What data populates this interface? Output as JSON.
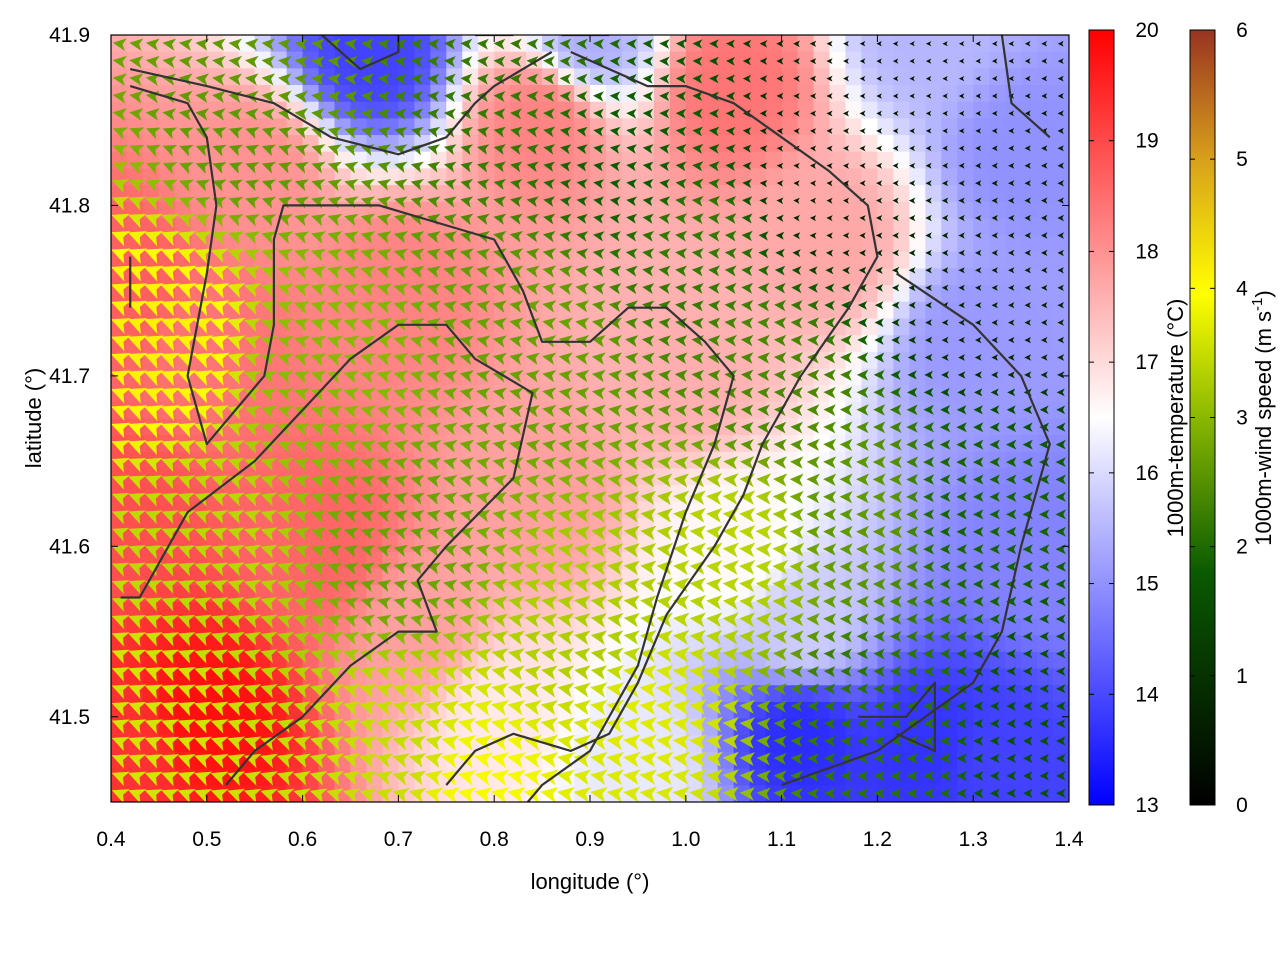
{
  "chart_data": {
    "type": "heatmap",
    "xlabel": "longitude (°)",
    "ylabel": "latitude (°)",
    "xlim": [
      0.4,
      1.4
    ],
    "ylim": [
      41.45,
      41.9
    ],
    "xticks": [
      "0.4",
      "0.5",
      "0.6",
      "0.7",
      "0.8",
      "0.9",
      "1.0",
      "1.1",
      "1.2",
      "1.3",
      "1.4"
    ],
    "yticks": [
      "41.5",
      "41.6",
      "41.7",
      "41.8",
      "41.9"
    ],
    "temperature_colorbar": {
      "label": "1000m-temperature (°C)",
      "range": [
        13,
        20
      ],
      "ticks": [
        "13",
        "14",
        "15",
        "16",
        "17",
        "18",
        "19",
        "20"
      ],
      "colors": [
        "#0000ff",
        "#ffffff",
        "#ff0000"
      ]
    },
    "wind_speed_colorbar": {
      "label_main": "1000m-wind speed (m s",
      "label_exponent": "-1",
      "label_close": ")",
      "range": [
        0,
        6
      ],
      "ticks": [
        "0",
        "1",
        "2",
        "3",
        "4",
        "5",
        "6"
      ],
      "colors": [
        "#000000",
        "#0a5a00",
        "#8ab800",
        "#ffff00",
        "#d9a21a",
        "#993322"
      ]
    },
    "temperature_anchors": [
      {
        "lon": 0.42,
        "lat": 41.48,
        "t": 19.3
      },
      {
        "lon": 0.5,
        "lat": 41.5,
        "t": 19.8
      },
      {
        "lon": 0.42,
        "lat": 41.75,
        "t": 18.7
      },
      {
        "lon": 0.5,
        "lat": 41.72,
        "t": 18.4
      },
      {
        "lon": 0.4,
        "lat": 41.62,
        "t": 18.9
      },
      {
        "lon": 0.62,
        "lat": 41.6,
        "t": 18.6
      },
      {
        "lon": 0.7,
        "lat": 41.75,
        "t": 18.2
      },
      {
        "lon": 0.85,
        "lat": 41.85,
        "t": 18.2
      },
      {
        "lon": 1.05,
        "lat": 41.87,
        "t": 18.4
      },
      {
        "lon": 1.15,
        "lat": 41.78,
        "t": 17.7
      },
      {
        "lon": 0.67,
        "lat": 41.89,
        "t": 13.9
      },
      {
        "lon": 0.9,
        "lat": 41.9,
        "t": 15.4
      },
      {
        "lon": 1.25,
        "lat": 41.9,
        "t": 15.5
      },
      {
        "lon": 1.35,
        "lat": 41.83,
        "t": 15.0
      },
      {
        "lon": 1.3,
        "lat": 41.72,
        "t": 15.1
      },
      {
        "lon": 1.37,
        "lat": 41.6,
        "t": 14.8
      },
      {
        "lon": 1.12,
        "lat": 41.55,
        "t": 15.8
      },
      {
        "lon": 1.12,
        "lat": 41.49,
        "t": 13.6
      },
      {
        "lon": 1.25,
        "lat": 41.48,
        "t": 13.7
      },
      {
        "lon": 1.32,
        "lat": 41.47,
        "t": 13.9
      },
      {
        "lon": 0.95,
        "lat": 41.47,
        "t": 16.2
      },
      {
        "lon": 0.8,
        "lat": 41.5,
        "t": 16.8
      },
      {
        "lon": 0.72,
        "lat": 41.55,
        "t": 17.8
      },
      {
        "lon": 0.85,
        "lat": 41.63,
        "t": 17.8
      },
      {
        "lon": 1.0,
        "lat": 41.7,
        "t": 17.6
      },
      {
        "lon": 1.05,
        "lat": 41.6,
        "t": 16.6
      },
      {
        "lon": 0.55,
        "lat": 41.82,
        "t": 18.0
      }
    ],
    "wind_speed_anchors": [
      {
        "lon": 0.45,
        "lat": 41.72,
        "s": 4.1
      },
      {
        "lon": 0.42,
        "lat": 41.5,
        "s": 3.6
      },
      {
        "lon": 0.5,
        "lat": 41.6,
        "s": 3.4
      },
      {
        "lon": 0.55,
        "lat": 41.85,
        "s": 2.6
      },
      {
        "lon": 0.62,
        "lat": 41.7,
        "s": 3.0
      },
      {
        "lon": 0.7,
        "lat": 41.6,
        "s": 2.7
      },
      {
        "lon": 0.7,
        "lat": 41.48,
        "s": 3.5
      },
      {
        "lon": 0.78,
        "lat": 41.46,
        "s": 3.9
      },
      {
        "lon": 0.85,
        "lat": 41.72,
        "s": 2.7
      },
      {
        "lon": 0.9,
        "lat": 41.55,
        "s": 3.3
      },
      {
        "lon": 0.95,
        "lat": 41.5,
        "s": 3.7
      },
      {
        "lon": 1.05,
        "lat": 41.6,
        "s": 3.4
      },
      {
        "lon": 1.0,
        "lat": 41.78,
        "s": 2.2
      },
      {
        "lon": 1.08,
        "lat": 41.7,
        "s": 2.4
      },
      {
        "lon": 1.18,
        "lat": 41.62,
        "s": 2.6
      },
      {
        "lon": 1.3,
        "lat": 41.62,
        "s": 1.9
      },
      {
        "lon": 1.15,
        "lat": 41.82,
        "s": 0.6
      },
      {
        "lon": 1.25,
        "lat": 41.88,
        "s": 0.4
      },
      {
        "lon": 1.32,
        "lat": 41.75,
        "s": 0.7
      },
      {
        "lon": 1.2,
        "lat": 41.5,
        "s": 2.1
      },
      {
        "lon": 0.8,
        "lat": 41.88,
        "s": 2.2
      },
      {
        "lon": 0.95,
        "lat": 41.82,
        "s": 1.8
      },
      {
        "lon": 1.38,
        "lat": 41.5,
        "s": 1.6
      }
    ],
    "wind_direction": "mostly toward the west-southwest, turning toward the west in the east and north",
    "contour_lines": [
      [
        [
          0.42,
          41.74
        ],
        [
          0.42,
          41.77
        ]
      ],
      [
        [
          0.42,
          41.87
        ],
        [
          0.48,
          41.86
        ],
        [
          0.5,
          41.84
        ],
        [
          0.51,
          41.8
        ],
        [
          0.5,
          41.76
        ],
        [
          0.48,
          41.7
        ],
        [
          0.5,
          41.66
        ],
        [
          0.53,
          41.68
        ],
        [
          0.56,
          41.7
        ],
        [
          0.57,
          41.73
        ],
        [
          0.57,
          41.78
        ],
        [
          0.58,
          41.8
        ],
        [
          0.62,
          41.8
        ],
        [
          0.68,
          41.8
        ],
        [
          0.74,
          41.79
        ],
        [
          0.8,
          41.78
        ],
        [
          0.83,
          41.75
        ],
        [
          0.85,
          41.72
        ],
        [
          0.9,
          41.72
        ],
        [
          0.94,
          41.74
        ],
        [
          0.98,
          41.74
        ],
        [
          1.02,
          41.72
        ],
        [
          1.05,
          41.7
        ],
        [
          1.03,
          41.66
        ],
        [
          1.0,
          41.62
        ],
        [
          0.97,
          41.57
        ],
        [
          0.95,
          41.53
        ],
        [
          0.9,
          41.48
        ],
        [
          0.85,
          41.46
        ],
        [
          0.82,
          41.44
        ]
      ],
      [
        [
          0.41,
          41.57
        ],
        [
          0.43,
          41.57
        ],
        [
          0.48,
          41.62
        ],
        [
          0.55,
          41.65
        ],
        [
          0.6,
          41.68
        ],
        [
          0.65,
          41.71
        ],
        [
          0.7,
          41.73
        ],
        [
          0.75,
          41.73
        ],
        [
          0.78,
          41.71
        ],
        [
          0.84,
          41.69
        ],
        [
          0.82,
          41.64
        ],
        [
          0.75,
          41.6
        ],
        [
          0.72,
          41.58
        ],
        [
          0.74,
          41.55
        ],
        [
          0.7,
          41.55
        ],
        [
          0.65,
          41.53
        ],
        [
          0.6,
          41.5
        ],
        [
          0.55,
          41.48
        ],
        [
          0.52,
          41.46
        ]
      ],
      [
        [
          0.75,
          41.46
        ],
        [
          0.78,
          41.48
        ],
        [
          0.82,
          41.49
        ],
        [
          0.88,
          41.48
        ],
        [
          0.92,
          41.49
        ],
        [
          0.95,
          41.52
        ],
        [
          0.98,
          41.56
        ],
        [
          1.03,
          41.6
        ],
        [
          1.06,
          41.63
        ],
        [
          1.08,
          41.66
        ],
        [
          1.12,
          41.7
        ],
        [
          1.17,
          41.74
        ],
        [
          1.2,
          41.77
        ],
        [
          1.19,
          41.8
        ],
        [
          1.15,
          41.82
        ],
        [
          1.1,
          41.84
        ],
        [
          1.05,
          41.86
        ],
        [
          1.0,
          41.87
        ],
        [
          0.96,
          41.87
        ],
        [
          0.92,
          41.88
        ],
        [
          0.88,
          41.89
        ]
      ],
      [
        [
          0.42,
          41.88
        ],
        [
          0.5,
          41.87
        ],
        [
          0.57,
          41.86
        ],
        [
          0.63,
          41.84
        ],
        [
          0.7,
          41.83
        ],
        [
          0.75,
          41.84
        ],
        [
          0.78,
          41.86
        ],
        [
          0.8,
          41.87
        ],
        [
          0.83,
          41.88
        ],
        [
          0.86,
          41.89
        ]
      ],
      [
        [
          0.62,
          41.9
        ],
        [
          0.66,
          41.88
        ],
        [
          0.7,
          41.89
        ],
        [
          0.7,
          41.9
        ]
      ],
      [
        [
          0.78,
          41.9
        ],
        [
          0.82,
          41.9
        ]
      ],
      [
        [
          0.87,
          41.9
        ],
        [
          0.92,
          41.9
        ]
      ],
      [
        [
          1.22,
          41.76
        ],
        [
          1.3,
          41.73
        ],
        [
          1.35,
          41.7
        ],
        [
          1.38,
          41.66
        ],
        [
          1.35,
          41.6
        ],
        [
          1.33,
          41.55
        ],
        [
          1.3,
          41.52
        ],
        [
          1.25,
          41.5
        ],
        [
          1.2,
          41.48
        ],
        [
          1.15,
          41.47
        ],
        [
          1.1,
          41.46
        ]
      ],
      [
        [
          1.18,
          41.5
        ],
        [
          1.23,
          41.5
        ],
        [
          1.26,
          41.52
        ],
        [
          1.26,
          41.48
        ],
        [
          1.22,
          41.49
        ]
      ],
      [
        [
          1.33,
          41.9
        ],
        [
          1.34,
          41.86
        ],
        [
          1.38,
          41.84
        ]
      ]
    ]
  }
}
